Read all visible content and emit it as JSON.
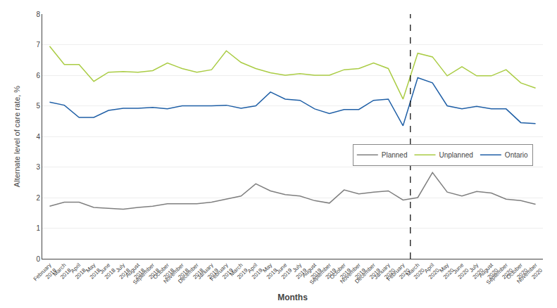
{
  "chart_data": {
    "type": "line",
    "categories": [
      "February\n2018",
      "March\n2018",
      "April\n2018",
      "May\n2018",
      "June\n2018",
      "July\n2018",
      "August\n2018",
      "September\n2018",
      "October\n2018",
      "November\n2018",
      "December\n2018",
      "January\n2019",
      "February\n2019",
      "March\n2019",
      "April\n2019",
      "May\n2019",
      "June\n2019",
      "July\n2019",
      "August\n2019",
      "September\n2019",
      "October\n2019",
      "November\n2019",
      "December\n2019",
      "January\n2020",
      "February\n2020",
      "March\n2020",
      "April\n2020",
      "May\n2020",
      "June\n2020",
      "July\n2020",
      "August\n2020",
      "September\n2020",
      "October\n2020",
      "November\n2020"
    ],
    "series": [
      {
        "name": "Planned",
        "color": "#7f7f7f",
        "values": [
          1.72,
          1.85,
          1.85,
          1.68,
          1.65,
          1.62,
          1.68,
          1.72,
          1.8,
          1.8,
          1.8,
          1.85,
          1.95,
          2.05,
          2.45,
          2.22,
          2.1,
          2.05,
          1.9,
          1.82,
          2.25,
          2.12,
          2.18,
          2.22,
          1.92,
          2.0,
          2.82,
          2.18,
          2.05,
          2.2,
          2.15,
          1.95,
          1.9,
          1.78
        ]
      },
      {
        "name": "Unplanned",
        "color": "#aacc44",
        "values": [
          6.95,
          6.35,
          6.35,
          5.8,
          6.1,
          6.12,
          6.1,
          6.15,
          6.4,
          6.22,
          6.1,
          6.18,
          6.8,
          6.42,
          6.22,
          6.08,
          6.0,
          6.05,
          6.0,
          6.0,
          6.18,
          6.22,
          6.4,
          6.22,
          5.22,
          6.72,
          6.6,
          5.98,
          6.28,
          5.98,
          5.98,
          6.18,
          5.75,
          5.58
        ]
      },
      {
        "name": "Ontario",
        "color": "#1f5fa6",
        "values": [
          5.12,
          5.02,
          4.62,
          4.62,
          4.85,
          4.92,
          4.92,
          4.95,
          4.9,
          5.0,
          5.0,
          5.0,
          5.02,
          4.92,
          5.0,
          5.45,
          5.22,
          5.18,
          4.9,
          4.75,
          4.88,
          4.88,
          5.18,
          5.22,
          4.35,
          5.92,
          5.75,
          5.0,
          4.9,
          4.98,
          4.9,
          4.9,
          4.45,
          4.42
        ]
      }
    ],
    "xlabel": "Months",
    "ylabel": "Alternate level of care rate, %",
    "ylim": [
      0,
      8
    ],
    "yticks": [
      0,
      1,
      2,
      3,
      4,
      5,
      6,
      7,
      8
    ],
    "grid": true,
    "legend": "lower right",
    "reference_line": {
      "before": "March\n2020",
      "line_style": "dashed",
      "color": "#000000"
    }
  }
}
